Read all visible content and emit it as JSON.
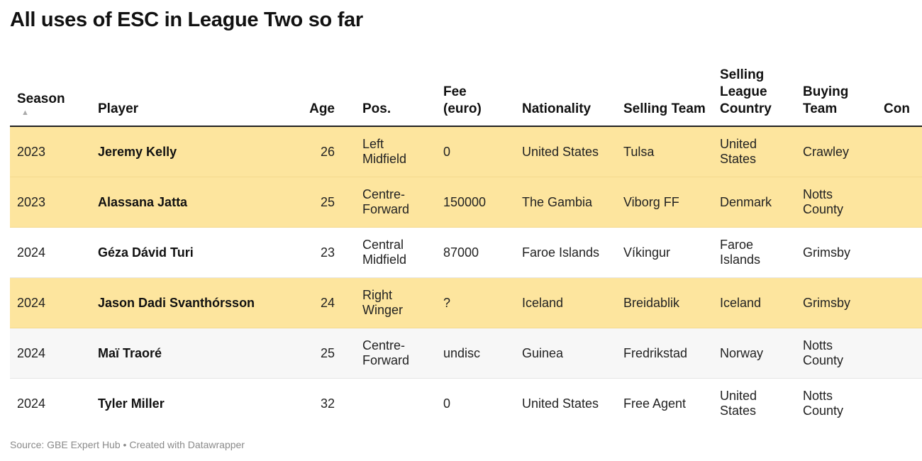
{
  "title": "All uses of ESC in League Two so far",
  "footer": {
    "source": "Source: GBE Expert Hub",
    "separator": " • ",
    "credit": "Created with Datawrapper"
  },
  "colors": {
    "highlight_row": "#fde59e",
    "alt_row": "#f7f7f7",
    "header_rule": "#222222",
    "footer_text": "#8a8a8a"
  },
  "chart_data": {
    "type": "table",
    "title": "All uses of ESC in League Two so far",
    "sort": {
      "column": "Season",
      "direction": "ascending",
      "icon": "sort-ascending-icon"
    },
    "columns": [
      "Season",
      "Player",
      "Age",
      "Pos.",
      "Fee (euro)",
      "Nationality",
      "Selling Team",
      "Selling League Country",
      "Buying Team",
      "Con"
    ],
    "rows": [
      {
        "season": "2023",
        "player": "Jeremy Kelly",
        "age": "26",
        "pos": "Left Midfield",
        "fee": "0",
        "nationality": "United States",
        "selling_team": "Tulsa",
        "selling_league_country": "United States",
        "buying_team": "Crawley",
        "con": "",
        "highlighted": true
      },
      {
        "season": "2023",
        "player": "Alassana Jatta",
        "age": "25",
        "pos": "Centre-Forward",
        "fee": "150000",
        "nationality": "The Gambia",
        "selling_team": "Viborg FF",
        "selling_league_country": "Denmark",
        "buying_team": "Notts County",
        "con": "",
        "highlighted": true
      },
      {
        "season": "2024",
        "player": "Géza Dávid Turi",
        "age": "23",
        "pos": "Central Midfield",
        "fee": "87000",
        "nationality": "Faroe Islands",
        "selling_team": "Víkingur",
        "selling_league_country": "Faroe Islands",
        "buying_team": "Grimsby",
        "con": "",
        "highlighted": false
      },
      {
        "season": "2024",
        "player": "Jason Dadi Svanthórsson",
        "age": "24",
        "pos": "Right Winger",
        "fee": "?",
        "nationality": "Iceland",
        "selling_team": "Breidablik",
        "selling_league_country": "Iceland",
        "buying_team": "Grimsby",
        "con": "",
        "highlighted": true
      },
      {
        "season": "2024",
        "player": "Maï Traoré",
        "age": "25",
        "pos": "Centre-Forward",
        "fee": "undisc",
        "nationality": "Guinea",
        "selling_team": "Fredrikstad",
        "selling_league_country": "Norway",
        "buying_team": "Notts County",
        "con": "",
        "highlighted": false
      },
      {
        "season": "2024",
        "player": "Tyler Miller",
        "age": "32",
        "pos": "",
        "fee": "0",
        "nationality": "United States",
        "selling_team": "Free Agent",
        "selling_league_country": "United States",
        "buying_team": "Notts County",
        "con": "",
        "highlighted": false
      }
    ]
  }
}
